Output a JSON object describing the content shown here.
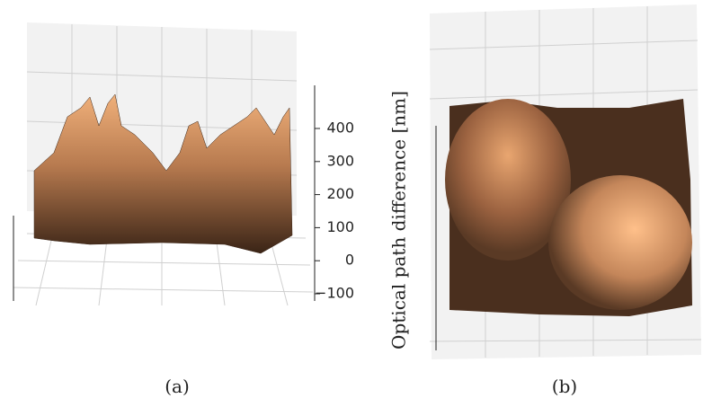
{
  "panels": [
    {
      "caption": "(a)",
      "zlim": [
        -100,
        400
      ],
      "zticks": [
        {
          "value": 400,
          "label": "400"
        },
        {
          "value": 300,
          "label": "300"
        },
        {
          "value": 200,
          "label": "200"
        },
        {
          "value": 100,
          "label": "100"
        },
        {
          "value": 0,
          "label": "0"
        },
        {
          "value": -100,
          "label": "−100"
        }
      ]
    },
    {
      "caption": "(b)",
      "zlabel": "Optical path difference [nm]"
    }
  ]
}
